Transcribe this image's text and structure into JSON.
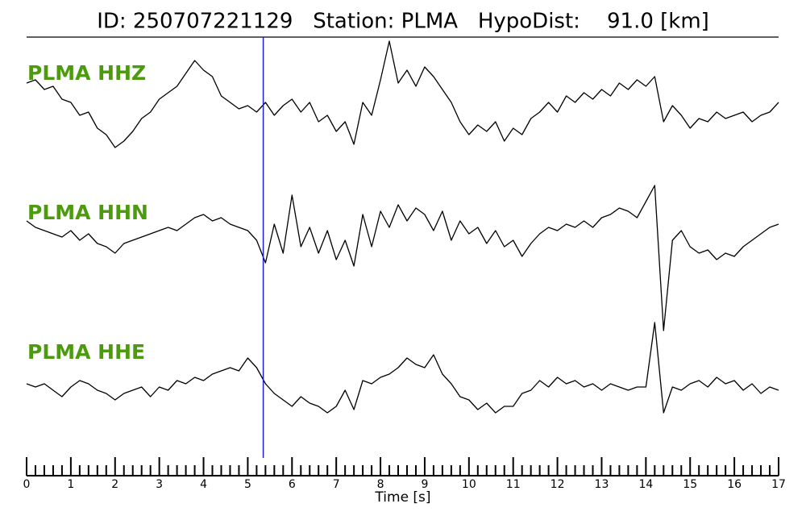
{
  "chart_data": {
    "type": "seismogram",
    "title": "ID: 250707221129   Station: PLMA   HypoDist:    91.0 [km]",
    "x_label": "Time [s]",
    "xlim": [
      0,
      17
    ],
    "xticks": [
      0,
      1,
      2,
      3,
      4,
      5,
      6,
      7,
      8,
      9,
      10,
      11,
      12,
      13,
      14,
      15,
      16,
      17
    ],
    "xminorticks": [
      0.2,
      0.4,
      0.6,
      0.8,
      1.2,
      1.4,
      1.6,
      1.8,
      2.2,
      2.4,
      2.6,
      2.8,
      3.2,
      3.4,
      3.6,
      3.8,
      4.2,
      4.4,
      4.6,
      4.8,
      5.2,
      5.4,
      5.6,
      5.8,
      6.2,
      6.4,
      6.6,
      6.8,
      7.2,
      7.4,
      7.6,
      7.8,
      8.2,
      8.4,
      8.6,
      8.8,
      9.2,
      9.4,
      9.6,
      9.8,
      10.2,
      10.4,
      10.6,
      10.8,
      11.2,
      11.4,
      11.6,
      11.8,
      12.2,
      12.4,
      12.6,
      12.8,
      13.2,
      13.4,
      13.6,
      13.8,
      14.2,
      14.4,
      14.6,
      14.8,
      15.2,
      15.4,
      15.6,
      15.8,
      16.2,
      16.4,
      16.6,
      16.8
    ],
    "ylim": [
      -1,
      1
    ],
    "label_color": "#4c9a0e",
    "pick": {
      "x": 5.35,
      "color": "#1f1fd0"
    },
    "x": [
      0,
      0.2,
      0.4,
      0.6,
      0.8,
      1,
      1.2,
      1.4,
      1.6,
      1.8,
      2,
      2.2,
      2.4,
      2.6,
      2.8,
      3,
      3.2,
      3.4,
      3.6,
      3.8,
      4,
      4.2,
      4.4,
      4.6,
      4.8,
      5,
      5.2,
      5.4,
      5.6,
      5.8,
      6,
      6.2,
      6.4,
      6.6,
      6.8,
      7,
      7.2,
      7.4,
      7.6,
      7.8,
      8,
      8.2,
      8.4,
      8.6,
      8.8,
      9,
      9.2,
      9.4,
      9.6,
      9.8,
      10,
      10.2,
      10.4,
      10.6,
      10.8,
      11,
      11.2,
      11.4,
      11.6,
      11.8,
      12,
      12.2,
      12.4,
      12.6,
      12.8,
      13,
      13.2,
      13.4,
      13.6,
      13.8,
      14,
      14.2,
      14.4,
      14.6,
      14.8,
      15,
      15.2,
      15.4,
      15.6,
      15.8,
      16,
      16.2,
      16.4,
      16.6,
      16.8,
      17
    ],
    "series": [
      {
        "name": "PLMA HHZ",
        "color": "#000000",
        "values": [
          0.4,
          0.45,
          0.3,
          0.35,
          0.15,
          0.1,
          -0.1,
          -0.05,
          -0.3,
          -0.4,
          -0.6,
          -0.5,
          -0.35,
          -0.15,
          -0.05,
          0.15,
          0.25,
          0.35,
          0.55,
          0.75,
          0.6,
          0.5,
          0.2,
          0.1,
          0,
          0.05,
          -0.05,
          0.1,
          -0.1,
          0.05,
          0.15,
          -0.05,
          0.1,
          -0.2,
          -0.1,
          -0.35,
          -0.2,
          -0.55,
          0.1,
          -0.1,
          0.45,
          1.05,
          0.4,
          0.6,
          0.35,
          0.65,
          0.5,
          0.3,
          0.1,
          -0.2,
          -0.4,
          -0.25,
          -0.35,
          -0.2,
          -0.5,
          -0.3,
          -0.4,
          -0.15,
          -0.05,
          0.1,
          -0.05,
          0.2,
          0.1,
          0.25,
          0.15,
          0.3,
          0.2,
          0.4,
          0.3,
          0.45,
          0.35,
          0.5,
          -0.2,
          0.05,
          -0.1,
          -0.3,
          -0.15,
          -0.2,
          -0.05,
          -0.15,
          -0.1,
          -0.05,
          -0.2,
          -0.1,
          -0.05,
          0.1
        ]
      },
      {
        "name": "PLMA HHN",
        "color": "#000000",
        "values": [
          0.2,
          0.1,
          0.05,
          0,
          -0.05,
          0.05,
          -0.1,
          0,
          -0.15,
          -0.2,
          -0.3,
          -0.15,
          -0.1,
          -0.05,
          0,
          0.05,
          0.1,
          0.05,
          0.15,
          0.25,
          0.3,
          0.2,
          0.25,
          0.15,
          0.1,
          0.05,
          -0.1,
          -0.45,
          0.15,
          -0.3,
          0.6,
          -0.2,
          0.1,
          -0.3,
          0.05,
          -0.4,
          -0.1,
          -0.5,
          0.3,
          -0.2,
          0.35,
          0.1,
          0.45,
          0.2,
          0.4,
          0.3,
          0.05,
          0.35,
          -0.1,
          0.2,
          0,
          0.1,
          -0.15,
          0.05,
          -0.2,
          -0.1,
          -0.35,
          -0.15,
          0,
          0.1,
          0.05,
          0.15,
          0.1,
          0.2,
          0.1,
          0.25,
          0.3,
          0.4,
          0.35,
          0.25,
          0.5,
          0.75,
          -1.5,
          -0.1,
          0.05,
          -0.2,
          -0.3,
          -0.25,
          -0.4,
          -0.3,
          -0.35,
          -0.2,
          -0.1,
          0,
          0.1,
          0.15
        ]
      },
      {
        "name": "PLMA HHE",
        "color": "#000000",
        "values": [
          0.05,
          0,
          0.05,
          -0.05,
          -0.15,
          0,
          0.1,
          0.05,
          -0.05,
          -0.1,
          -0.2,
          -0.1,
          -0.05,
          0,
          -0.15,
          0,
          -0.05,
          0.1,
          0.05,
          0.15,
          0.1,
          0.2,
          0.25,
          0.3,
          0.25,
          0.45,
          0.3,
          0.05,
          -0.1,
          -0.2,
          -0.3,
          -0.15,
          -0.25,
          -0.3,
          -0.4,
          -0.3,
          -0.05,
          -0.35,
          0.1,
          0.05,
          0.15,
          0.2,
          0.3,
          0.45,
          0.35,
          0.3,
          0.5,
          0.2,
          0.05,
          -0.15,
          -0.2,
          -0.35,
          -0.25,
          -0.4,
          -0.3,
          -0.3,
          -0.1,
          -0.05,
          0.1,
          0,
          0.15,
          0.05,
          0.1,
          0,
          0.05,
          -0.05,
          0.05,
          0,
          -0.05,
          0,
          0,
          1.0,
          -0.4,
          0,
          -0.05,
          0.05,
          0.1,
          0,
          0.15,
          0.05,
          0.1,
          -0.05,
          0.05,
          -0.1,
          0,
          -0.05
        ]
      }
    ]
  }
}
